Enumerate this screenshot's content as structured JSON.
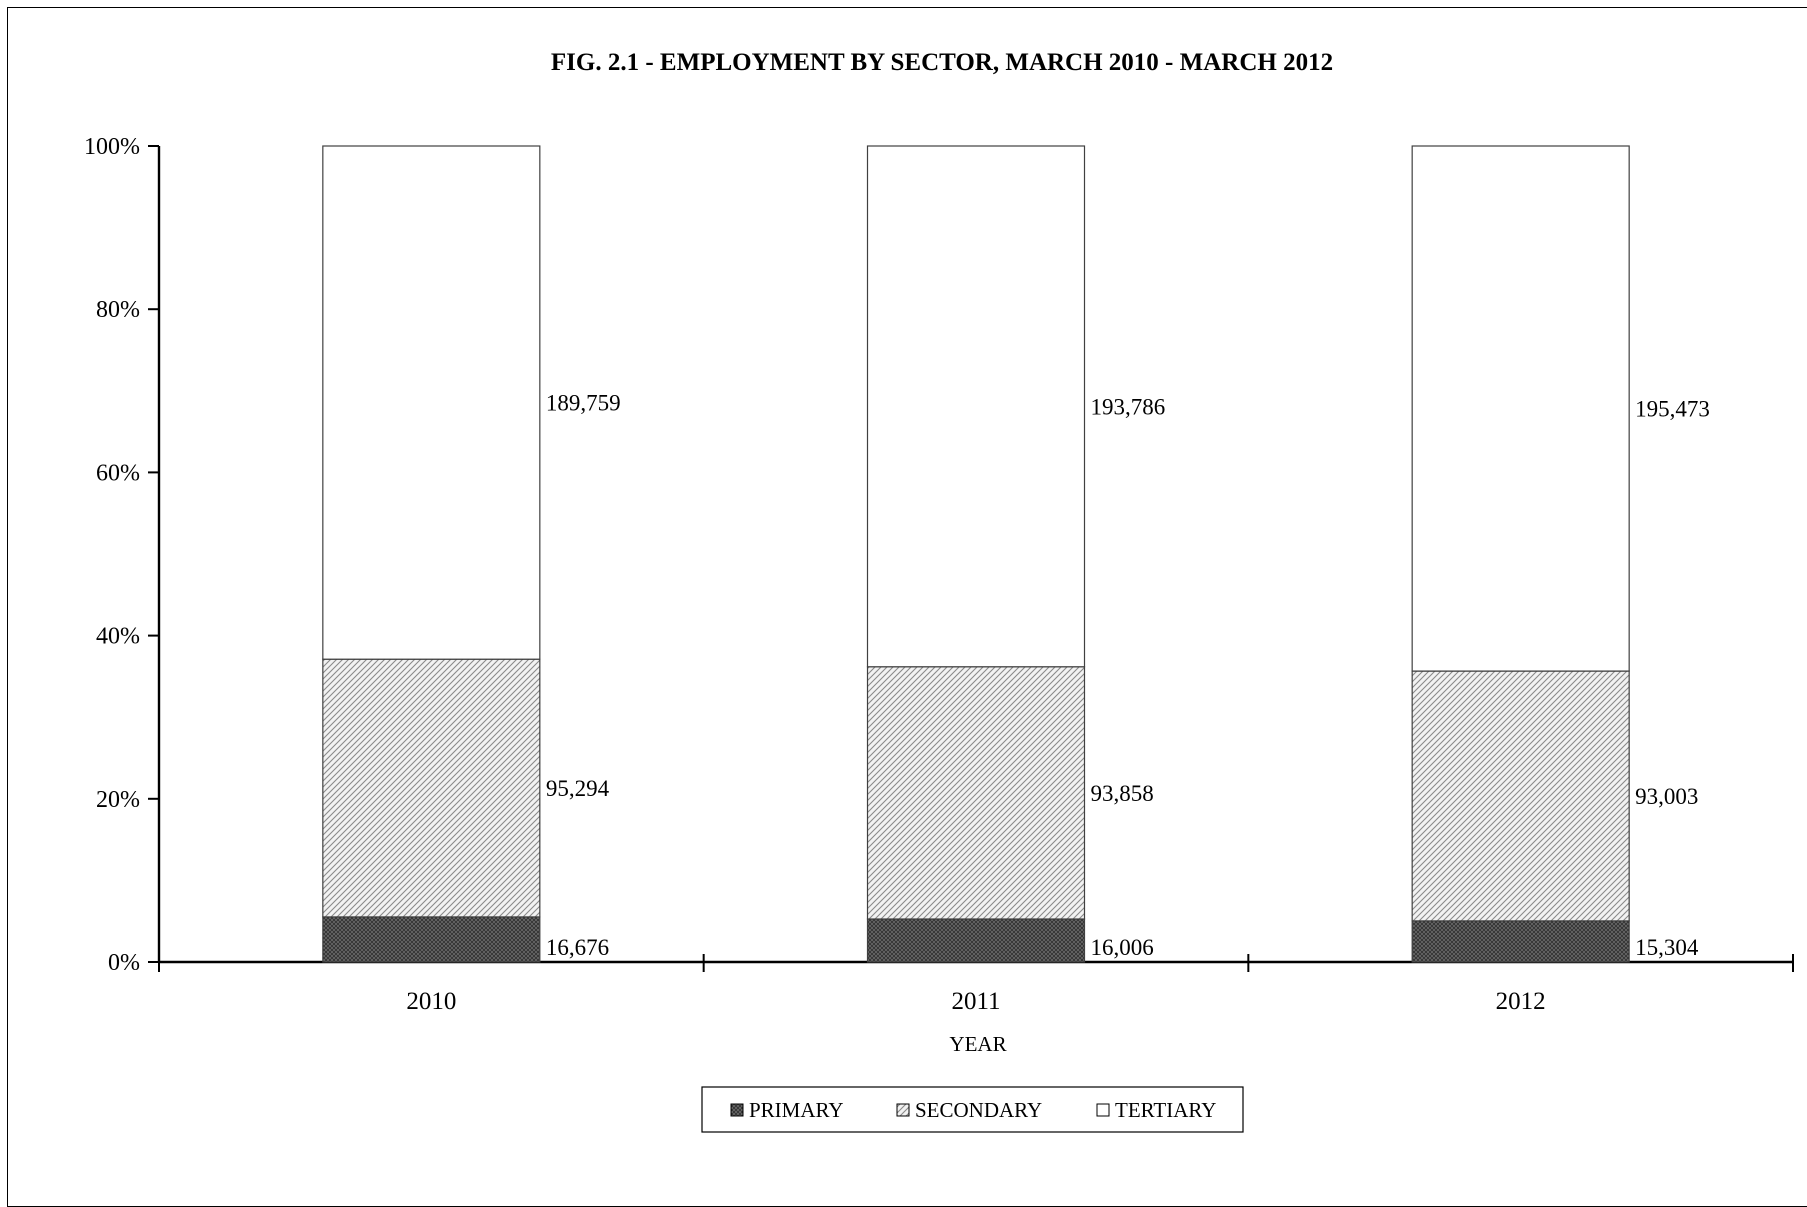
{
  "chart_data": {
    "type": "bar",
    "stacked": true,
    "normalized": "percent",
    "title": "FIG. 2.1 - EMPLOYMENT BY SECTOR,  MARCH 2010 - MARCH 2012",
    "xlabel": "YEAR",
    "ylabel": "",
    "categories": [
      "2010",
      "2011",
      "2012"
    ],
    "series": [
      {
        "name": "PRIMARY",
        "values": [
          16676,
          16006,
          15304
        ],
        "labels": [
          "16,676",
          "16,006",
          "15,304"
        ],
        "fill": "#3a3a3a",
        "pattern": "dark-crosshatch"
      },
      {
        "name": "SECONDARY",
        "values": [
          95294,
          93858,
          93003
        ],
        "labels": [
          "95,294",
          "93,858",
          "93,003"
        ],
        "fill": "#d9d9d9",
        "pattern": "diagonal-hatch"
      },
      {
        "name": "TERTIARY",
        "values": [
          189759,
          193786,
          195473
        ],
        "labels": [
          "189,759",
          "193,786",
          "195,473"
        ],
        "fill": "#ffffff",
        "pattern": "none"
      }
    ],
    "ylim": [
      0,
      100
    ],
    "yticks": [
      0,
      20,
      40,
      60,
      80,
      100
    ],
    "ytick_labels": [
      "0%",
      "20%",
      "40%",
      "60%",
      "80%",
      "100%"
    ],
    "grid": false,
    "legend_position": "bottom-center"
  }
}
